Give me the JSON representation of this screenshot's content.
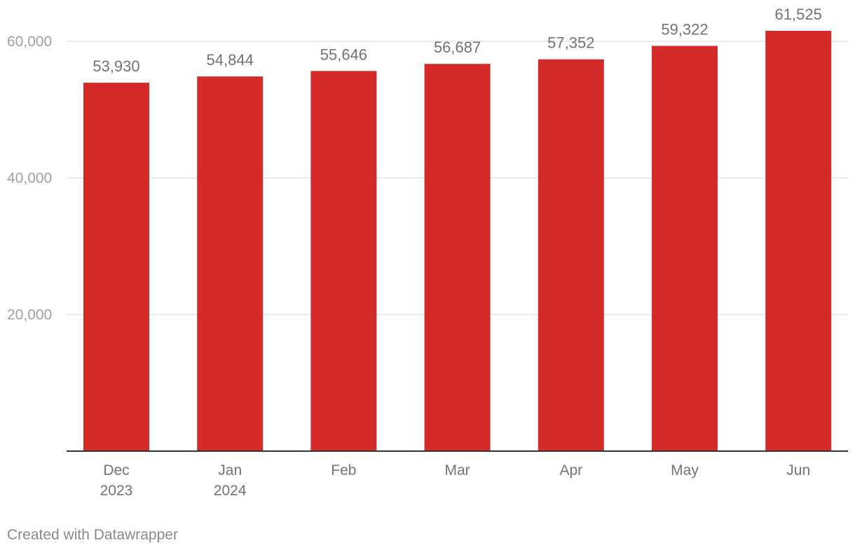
{
  "chart_data": {
    "type": "bar",
    "title": "",
    "xlabel": "",
    "ylabel": "",
    "categories": [
      [
        "Dec",
        "2023"
      ],
      [
        "Jan",
        "2024"
      ],
      [
        "Feb"
      ],
      [
        "Mar"
      ],
      [
        "Apr"
      ],
      [
        "May"
      ],
      [
        "Jun"
      ]
    ],
    "values": [
      53930,
      54844,
      55646,
      56687,
      57352,
      59322,
      61525
    ],
    "value_labels": [
      "53,930",
      "54,844",
      "55,646",
      "56,687",
      "57,352",
      "59,322",
      "61,525"
    ],
    "yticks": [
      20000,
      40000,
      60000
    ],
    "ytick_labels": [
      "20,000",
      "40,000",
      "60,000"
    ],
    "ylim": [
      0,
      61525
    ],
    "grid": true,
    "bar_color": "#d52a2a",
    "text_color": "#737373",
    "tick_color": "#a0a0a0",
    "grid_color": "#e3e3e3",
    "axis_color": "#333333"
  },
  "footer": {
    "credit": "Created with Datawrapper"
  }
}
